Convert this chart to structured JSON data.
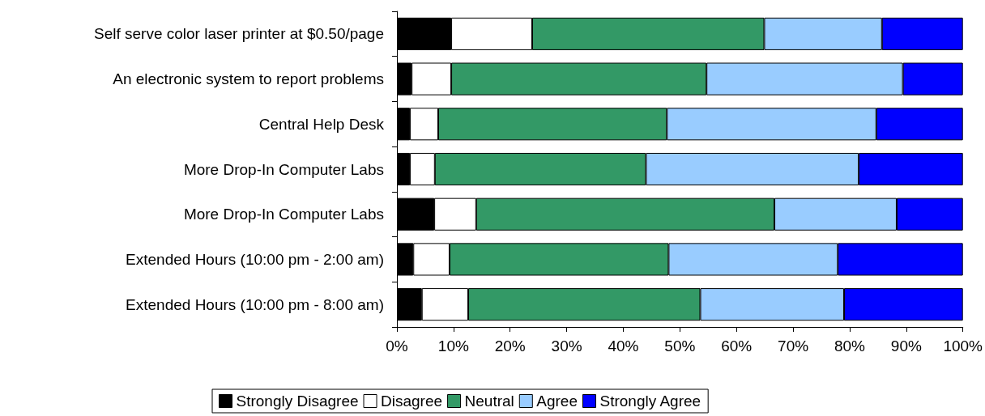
{
  "chart_data": {
    "type": "bar",
    "orientation": "horizontal",
    "stacked": true,
    "categories": [
      "Self serve color laser printer at $0.50/page",
      "An electronic system to report problems",
      "Central Help Desk",
      "More Drop-In Computer Labs",
      "More Drop-In Computer Labs",
      "Extended Hours (10:00 pm - 2:00 am)",
      "Extended Hours (10:00 pm - 8:00 am)"
    ],
    "series": [
      {
        "name": "Strongly Disagree",
        "color": "#000000",
        "values": [
          9.6,
          2.6,
          2.3,
          2.3,
          6.6,
          2.9,
          4.4
        ]
      },
      {
        "name": "Disagree",
        "color": "#ffffff",
        "values": [
          14.3,
          7.0,
          5.0,
          4.4,
          7.4,
          6.4,
          8.2
        ]
      },
      {
        "name": "Neutral",
        "color": "#339966",
        "values": [
          41.0,
          45.1,
          40.4,
          37.3,
          52.7,
          38.7,
          41.0
        ]
      },
      {
        "name": "Agree",
        "color": "#99ccff",
        "values": [
          20.8,
          34.7,
          37.0,
          37.6,
          21.6,
          29.9,
          25.4
        ]
      },
      {
        "name": "Strongly Agree",
        "color": "#0000ff",
        "values": [
          14.3,
          10.6,
          15.3,
          18.4,
          11.7,
          22.1,
          21.0
        ]
      }
    ],
    "xlim": [
      0,
      100
    ],
    "xticks": [
      {
        "value": 0,
        "label": "0%"
      },
      {
        "value": 10,
        "label": "10%"
      },
      {
        "value": 20,
        "label": "20%"
      },
      {
        "value": 30,
        "label": "30%"
      },
      {
        "value": 40,
        "label": "40%"
      },
      {
        "value": 50,
        "label": "50%"
      },
      {
        "value": 60,
        "label": "60%"
      },
      {
        "value": 70,
        "label": "70%"
      },
      {
        "value": 80,
        "label": "80%"
      },
      {
        "value": 90,
        "label": "90%"
      },
      {
        "value": 100,
        "label": "100%"
      }
    ],
    "grid": false,
    "legend": "bottom"
  }
}
